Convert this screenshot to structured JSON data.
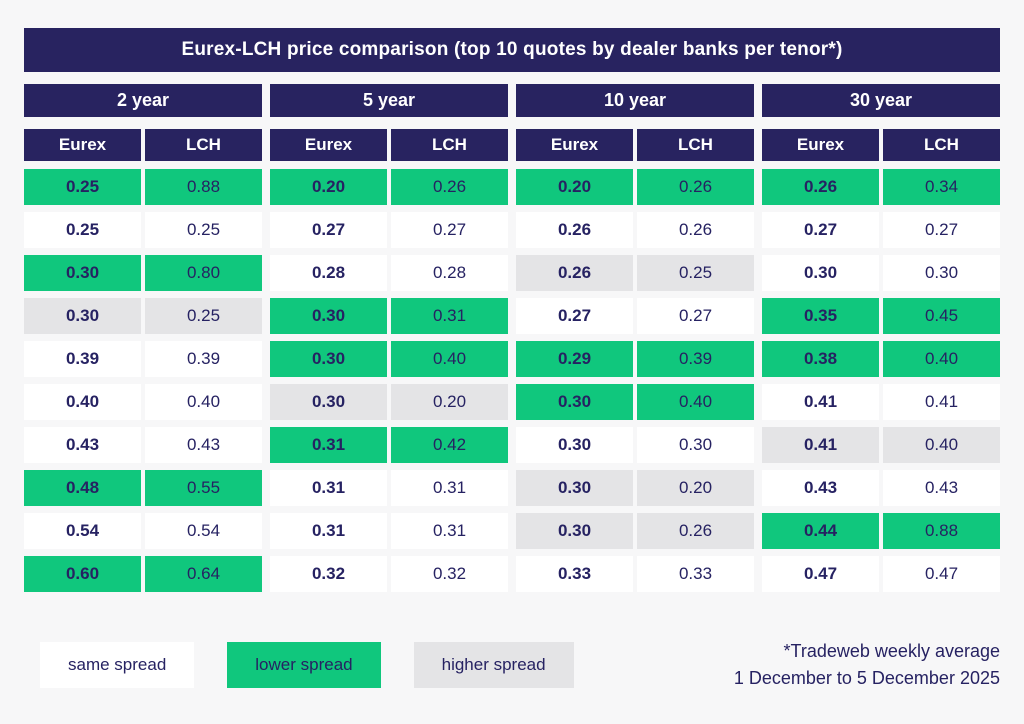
{
  "title": "Eurex-LCH price comparison (top 10 quotes by dealer banks per tenor*)",
  "legend": {
    "same": "same spread",
    "lower": "lower spread",
    "higher": "higher spread"
  },
  "footnote": {
    "line1": "*Tradeweb weekly average",
    "line2": "1 December to 5 December 2025"
  },
  "colors": {
    "navy": "#282360",
    "green": "#10c77d",
    "gray": "#e4e4e6",
    "white": "#ffffff",
    "background": "#f7f7f8",
    "text": "#262262"
  },
  "chart_data": {
    "type": "table",
    "title": "Eurex-LCH price comparison (top 10 quotes by dealer banks per tenor*)",
    "tenors": [
      "2 year",
      "5 year",
      "10 year",
      "30 year"
    ],
    "subheaders": [
      "Eurex",
      "LCH"
    ],
    "status_meaning": {
      "same": "same spread",
      "lower": "lower spread",
      "higher": "higher spread"
    },
    "rows": [
      {
        "cells": [
          {
            "eurex": "0.25",
            "lch": "0.88",
            "status": "lower"
          },
          {
            "eurex": "0.20",
            "lch": "0.26",
            "status": "lower"
          },
          {
            "eurex": "0.20",
            "lch": "0.26",
            "status": "lower"
          },
          {
            "eurex": "0.26",
            "lch": "0.34",
            "status": "lower"
          }
        ]
      },
      {
        "cells": [
          {
            "eurex": "0.25",
            "lch": "0.25",
            "status": "same"
          },
          {
            "eurex": "0.27",
            "lch": "0.27",
            "status": "same"
          },
          {
            "eurex": "0.26",
            "lch": "0.26",
            "status": "same"
          },
          {
            "eurex": "0.27",
            "lch": "0.27",
            "status": "same"
          }
        ]
      },
      {
        "cells": [
          {
            "eurex": "0.30",
            "lch": "0.80",
            "status": "lower"
          },
          {
            "eurex": "0.28",
            "lch": "0.28",
            "status": "same"
          },
          {
            "eurex": "0.26",
            "lch": "0.25",
            "status": "higher"
          },
          {
            "eurex": "0.30",
            "lch": "0.30",
            "status": "same"
          }
        ]
      },
      {
        "cells": [
          {
            "eurex": "0.30",
            "lch": "0.25",
            "status": "higher"
          },
          {
            "eurex": "0.30",
            "lch": "0.31",
            "status": "lower"
          },
          {
            "eurex": "0.27",
            "lch": "0.27",
            "status": "same"
          },
          {
            "eurex": "0.35",
            "lch": "0.45",
            "status": "lower"
          }
        ]
      },
      {
        "cells": [
          {
            "eurex": "0.39",
            "lch": "0.39",
            "status": "same"
          },
          {
            "eurex": "0.30",
            "lch": "0.40",
            "status": "lower"
          },
          {
            "eurex": "0.29",
            "lch": "0.39",
            "status": "lower"
          },
          {
            "eurex": "0.38",
            "lch": "0.40",
            "status": "lower"
          }
        ]
      },
      {
        "cells": [
          {
            "eurex": "0.40",
            "lch": "0.40",
            "status": "same"
          },
          {
            "eurex": "0.30",
            "lch": "0.20",
            "status": "higher"
          },
          {
            "eurex": "0.30",
            "lch": "0.40",
            "status": "lower"
          },
          {
            "eurex": "0.41",
            "lch": "0.41",
            "status": "same"
          }
        ]
      },
      {
        "cells": [
          {
            "eurex": "0.43",
            "lch": "0.43",
            "status": "same"
          },
          {
            "eurex": "0.31",
            "lch": "0.42",
            "status": "lower"
          },
          {
            "eurex": "0.30",
            "lch": "0.30",
            "status": "same"
          },
          {
            "eurex": "0.41",
            "lch": "0.40",
            "status": "higher"
          }
        ]
      },
      {
        "cells": [
          {
            "eurex": "0.48",
            "lch": "0.55",
            "status": "lower"
          },
          {
            "eurex": "0.31",
            "lch": "0.31",
            "status": "same"
          },
          {
            "eurex": "0.30",
            "lch": "0.20",
            "status": "higher"
          },
          {
            "eurex": "0.43",
            "lch": "0.43",
            "status": "same"
          }
        ]
      },
      {
        "cells": [
          {
            "eurex": "0.54",
            "lch": "0.54",
            "status": "same"
          },
          {
            "eurex": "0.31",
            "lch": "0.31",
            "status": "same"
          },
          {
            "eurex": "0.30",
            "lch": "0.26",
            "status": "higher"
          },
          {
            "eurex": "0.44",
            "lch": "0.88",
            "status": "lower"
          }
        ]
      },
      {
        "cells": [
          {
            "eurex": "0.60",
            "lch": "0.64",
            "status": "lower"
          },
          {
            "eurex": "0.32",
            "lch": "0.32",
            "status": "same"
          },
          {
            "eurex": "0.33",
            "lch": "0.33",
            "status": "same"
          },
          {
            "eurex": "0.47",
            "lch": "0.47",
            "status": "same"
          }
        ]
      }
    ]
  }
}
